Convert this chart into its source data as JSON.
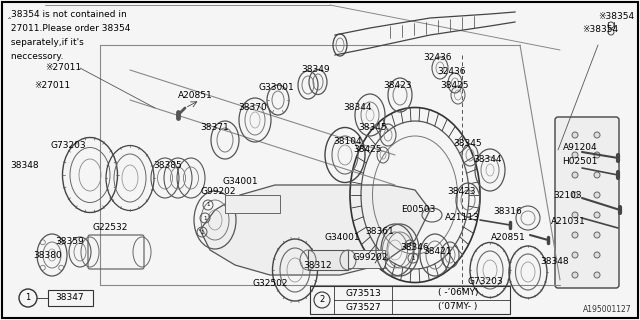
{
  "bg_color": "#f5f5f5",
  "border_color": "#000000",
  "text_color": "#000000",
  "diagram_id": "A195001127",
  "figsize": [
    6.4,
    3.2
  ],
  "dpi": 100,
  "note_lines": [
    "‸38354 is not contained in",
    " 27011.Please order 38354",
    " separately,if it's",
    " neccessory."
  ],
  "note_ref": "‧27011",
  "top_right_note": "‸38354",
  "legend_items": [
    {
      "code": "G73513",
      "note": "( -’06MY)"
    },
    {
      "code": "G73527",
      "note": "(’07MY- )"
    }
  ]
}
